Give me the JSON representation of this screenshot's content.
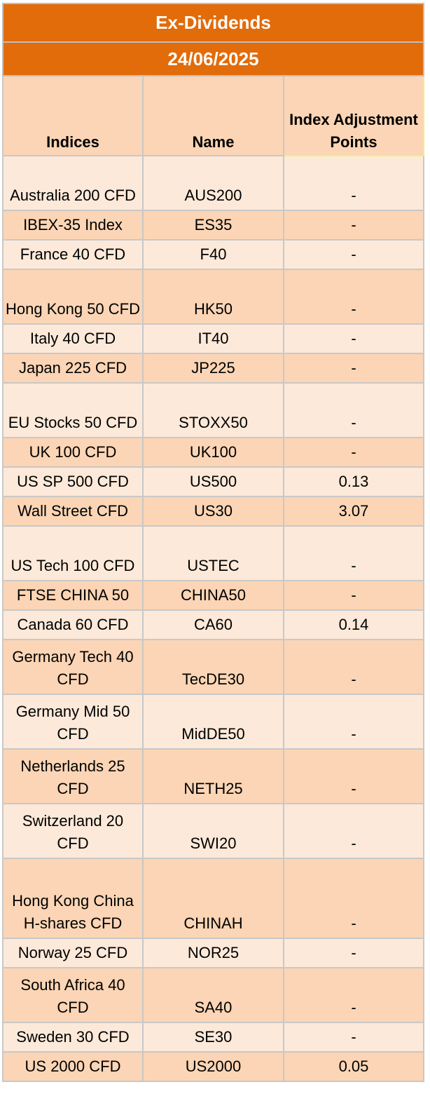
{
  "title": "Ex-Dividends",
  "date": "24/06/2025",
  "columns": [
    "Indices",
    "Name",
    "Index Adjustment Points"
  ],
  "rows": [
    {
      "index": "Australia 200 CFD",
      "name": "AUS200",
      "points": "-"
    },
    {
      "index": "IBEX-35 Index",
      "name": "ES35",
      "points": "-"
    },
    {
      "index": "France 40 CFD",
      "name": "F40",
      "points": "-"
    },
    {
      "index": "Hong Kong 50 CFD",
      "name": "HK50",
      "points": "-"
    },
    {
      "index": "Italy 40 CFD",
      "name": "IT40",
      "points": "-"
    },
    {
      "index": "Japan 225 CFD",
      "name": "JP225",
      "points": "-"
    },
    {
      "index": "EU Stocks 50 CFD",
      "name": "STOXX50",
      "points": "-"
    },
    {
      "index": "UK 100 CFD",
      "name": "UK100",
      "points": "-"
    },
    {
      "index": "US SP 500 CFD",
      "name": "US500",
      "points": "0.13"
    },
    {
      "index": "Wall Street CFD",
      "name": "US30",
      "points": "3.07"
    },
    {
      "index": "US Tech 100 CFD",
      "name": "USTEC",
      "points": "-"
    },
    {
      "index": "FTSE CHINA 50",
      "name": "CHINA50",
      "points": "-"
    },
    {
      "index": "Canada 60 CFD",
      "name": "CA60",
      "points": "0.14"
    },
    {
      "index": "Germany Tech 40 CFD",
      "name": "TecDE30",
      "points": "-"
    },
    {
      "index": "Germany Mid 50 CFD",
      "name": "MidDE50",
      "points": "-"
    },
    {
      "index": "Netherlands 25 CFD",
      "name": "NETH25",
      "points": "-"
    },
    {
      "index": "Switzerland 20 CFD",
      "name": "SWI20",
      "points": "-"
    },
    {
      "index": "Hong Kong China H-shares CFD",
      "name": "CHINAH",
      "points": "-"
    },
    {
      "index": "Norway 25 CFD",
      "name": "NOR25",
      "points": "-"
    },
    {
      "index": "South Africa 40 CFD",
      "name": "SA40",
      "points": "-"
    },
    {
      "index": "Sweden 30 CFD",
      "name": "SE30",
      "points": "-"
    },
    {
      "index": "US 2000 CFD",
      "name": "US2000",
      "points": "0.05"
    }
  ]
}
